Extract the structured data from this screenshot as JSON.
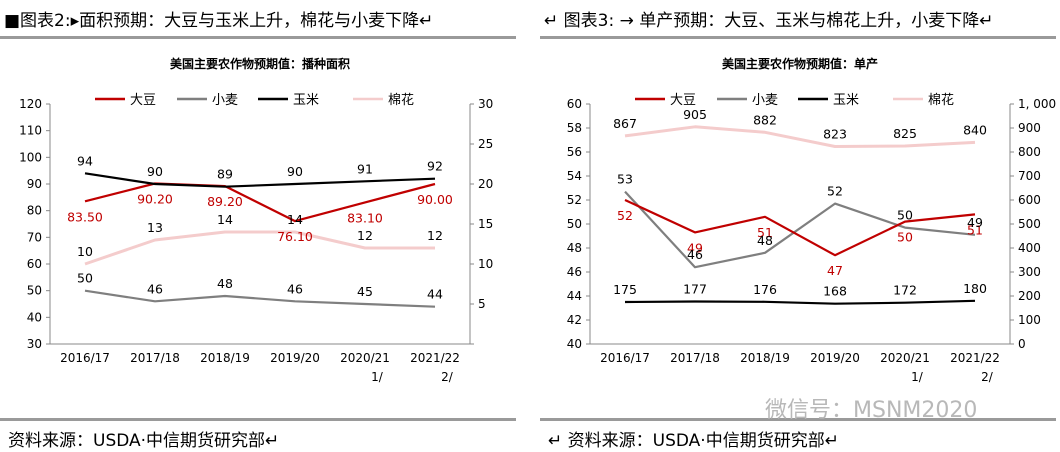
{
  "left_panel": {
    "header": "■图表2:▸面积预期：大豆与玉米上升，棉花与小麦下降↵",
    "source": "资料来源：USDA·中信期货研究部↵"
  },
  "right_panel": {
    "header": "↵ 图表3: → 单产预期：大豆、玉米与棉花上升，小麦下降↵",
    "source": "↵ 资料来源：USDA·中信期货研究部↵"
  },
  "watermark": "微信号：MSNM2020",
  "chart_data": [
    {
      "type": "line",
      "title": "美国主要农作物预期值：播种面积",
      "categories": [
        "2016/17",
        "2017/18",
        "2018/19",
        "2019/20",
        "2020/21 1/",
        "2021/22 2/"
      ],
      "category_lines": [
        [
          "2016/17"
        ],
        [
          "2017/18"
        ],
        [
          "2018/19"
        ],
        [
          "2019/20"
        ],
        [
          "2020/21",
          "1/"
        ],
        [
          "2021/22",
          "2/"
        ]
      ],
      "ylim_left": [
        30,
        120
      ],
      "yticks_left": [
        "30",
        "40",
        "50",
        "60",
        "70",
        "80",
        "90",
        "100",
        "110",
        "120"
      ],
      "ylim_right": [
        0,
        30
      ],
      "yticks_right": [
        "",
        "5",
        "10",
        "15",
        "20",
        "25",
        "30"
      ],
      "legend_position": "top",
      "series": [
        {
          "name": "大豆",
          "axis": "left",
          "color": "#c00000",
          "values": [
            83.5,
            90.2,
            89.2,
            76.1,
            83.1,
            90.0
          ],
          "labels": [
            "83.50",
            "90.20",
            "89.20",
            "76.10",
            "83.10",
            "90.00"
          ],
          "label_color": "#c00000"
        },
        {
          "name": "小麦",
          "axis": "left",
          "color": "#7f7f7f",
          "values": [
            50,
            46,
            48,
            46,
            45,
            44
          ],
          "labels": [
            "50",
            "46",
            "48",
            "46",
            "45",
            "44"
          ],
          "label_color": "#000000"
        },
        {
          "name": "玉米",
          "axis": "left",
          "color": "#000000",
          "values": [
            94,
            90,
            89,
            90,
            91,
            92
          ],
          "labels": [
            "94",
            "90",
            "89",
            "90",
            "91",
            "92"
          ],
          "label_color": "#000000"
        },
        {
          "name": "棉花",
          "axis": "right",
          "color": "#f4cccc",
          "values": [
            10,
            13,
            14,
            14,
            12,
            12
          ],
          "labels": [
            "10",
            "13",
            "14",
            "14",
            "12",
            "12"
          ],
          "label_color": "#000000"
        }
      ]
    },
    {
      "type": "line",
      "title": "美国主要农作物预期值：单产",
      "categories": [
        "2016/17",
        "2017/18",
        "2018/19",
        "2019/20",
        "2020/21 1/",
        "2021/22 2/"
      ],
      "category_lines": [
        [
          "2016/17"
        ],
        [
          "2017/18"
        ],
        [
          "2018/19"
        ],
        [
          "2019/20"
        ],
        [
          "2020/21",
          "1/"
        ],
        [
          "2021/22",
          "2/"
        ]
      ],
      "ylim_left": [
        40,
        60
      ],
      "yticks_left": [
        "40",
        "42",
        "44",
        "46",
        "48",
        "50",
        "52",
        "54",
        "56",
        "58",
        "60"
      ],
      "ylim_right": [
        0,
        1000
      ],
      "yticks_right": [
        "0",
        "100",
        "200",
        "300",
        "400",
        "500",
        "600",
        "700",
        "800",
        "900",
        "1, 000"
      ],
      "legend_position": "top",
      "series": [
        {
          "name": "大豆",
          "axis": "left",
          "color": "#c00000",
          "values": [
            52,
            49.3,
            50.6,
            47.4,
            50.2,
            50.8
          ],
          "labels": [
            "52",
            "49",
            "51",
            "47",
            "50",
            "51"
          ],
          "label_color": "#c00000"
        },
        {
          "name": "小麦",
          "axis": "left",
          "color": "#7f7f7f",
          "values": [
            52.7,
            46.4,
            47.6,
            51.7,
            49.7,
            49.1
          ],
          "labels": [
            "53",
            "46",
            "48",
            "52",
            "50",
            "49"
          ],
          "label_color": "#000000"
        },
        {
          "name": "玉米",
          "axis": "right",
          "color": "#000000",
          "values": [
            175,
            177,
            176,
            168,
            172,
            180
          ],
          "labels": [
            "175",
            "177",
            "176",
            "168",
            "172",
            "180"
          ],
          "label_color": "#000000"
        },
        {
          "name": "棉花",
          "axis": "right",
          "color": "#f4cccc",
          "values": [
            867,
            905,
            882,
            823,
            825,
            840
          ],
          "labels": [
            "867",
            "905",
            "882",
            "823",
            "825",
            "840"
          ],
          "label_color": "#000000"
        }
      ]
    }
  ]
}
